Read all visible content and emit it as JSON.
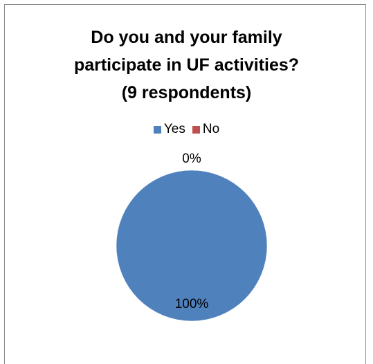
{
  "chart_data": {
    "type": "pie",
    "title": [
      "Do you and your family",
      "participate in UF activities?",
      "(9 respondents)"
    ],
    "categories": [
      "Yes",
      "No"
    ],
    "values": [
      100,
      0
    ],
    "data_labels": [
      "100%",
      "0%"
    ],
    "colors": [
      "#4f81bd",
      "#c0504d"
    ],
    "legend_position": "top"
  }
}
